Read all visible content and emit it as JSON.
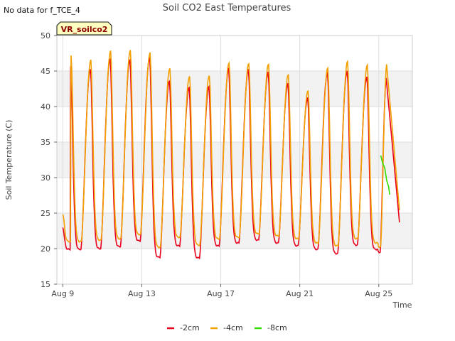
{
  "no_data_note": "No data for f_TCE_4",
  "site_badge": "VR_soilco2",
  "chart_data": {
    "type": "line",
    "title": "Soil CO2 East Temperatures",
    "xlabel": "Time",
    "ylabel": "Soil Temperature (C)",
    "x_unit": "days since Aug 9",
    "xlim": [
      -0.3,
      17.7
    ],
    "ylim": [
      15,
      50
    ],
    "yticks": [
      15,
      20,
      25,
      30,
      35,
      40,
      45,
      50
    ],
    "xticks": [
      {
        "pos": 0,
        "label": "Aug 9"
      },
      {
        "pos": 4,
        "label": "Aug 13"
      },
      {
        "pos": 8,
        "label": "Aug 17"
      },
      {
        "pos": 12,
        "label": "Aug 21"
      },
      {
        "pos": 16,
        "label": "Aug 25"
      }
    ],
    "bands": [
      [
        20,
        25
      ],
      [
        30,
        35
      ],
      [
        40,
        45
      ]
    ],
    "grid": true,
    "legend_position": "bottom",
    "daily_peaks": {
      "-2cm": [
        45.7,
        45.3,
        46.7,
        46.6,
        46.9,
        43.6,
        42.7,
        42.8,
        45.3,
        45.2,
        44.8,
        43.2,
        41.2,
        44.8,
        45.0,
        44.2,
        44.3
      ],
      "-4cm": [
        47.1,
        46.5,
        47.8,
        47.9,
        47.6,
        45.4,
        44.3,
        44.4,
        46.2,
        46.1,
        46.0,
        44.5,
        42.2,
        45.4,
        46.3,
        45.8,
        46.1
      ]
    },
    "daily_mins": {
      "-2cm": [
        19.9,
        20.0,
        20.3,
        21.1,
        18.8,
        20.4,
        18.7,
        20.4,
        20.8,
        21.2,
        20.8,
        20.4,
        19.9,
        19.3,
        20.5,
        19.9,
        19.5
      ],
      "-4cm": [
        21.0,
        21.2,
        21.4,
        22.0,
        20.2,
        21.6,
        20.5,
        21.4,
        21.6,
        22.1,
        21.8,
        21.4,
        20.8,
        20.4,
        21.4,
        20.8,
        20.2
      ]
    },
    "series": [
      {
        "name": "-2cm",
        "color": "#e8001c",
        "start_value": 23.0,
        "end_value": 23.7,
        "start_x": 0.0,
        "end_x": 17.05
      },
      {
        "name": "-4cm",
        "color": "#f2a000",
        "start_value": 24.9,
        "end_value": 25.4,
        "start_x": 0.0,
        "end_x": 17.05
      },
      {
        "name": "-8cm",
        "color": "#33dd00",
        "points": [
          [
            16.1,
            33.1
          ],
          [
            16.2,
            32.0
          ],
          [
            16.3,
            31.4
          ],
          [
            16.4,
            29.6
          ],
          [
            16.5,
            28.7
          ],
          [
            16.55,
            27.6
          ]
        ]
      }
    ]
  }
}
